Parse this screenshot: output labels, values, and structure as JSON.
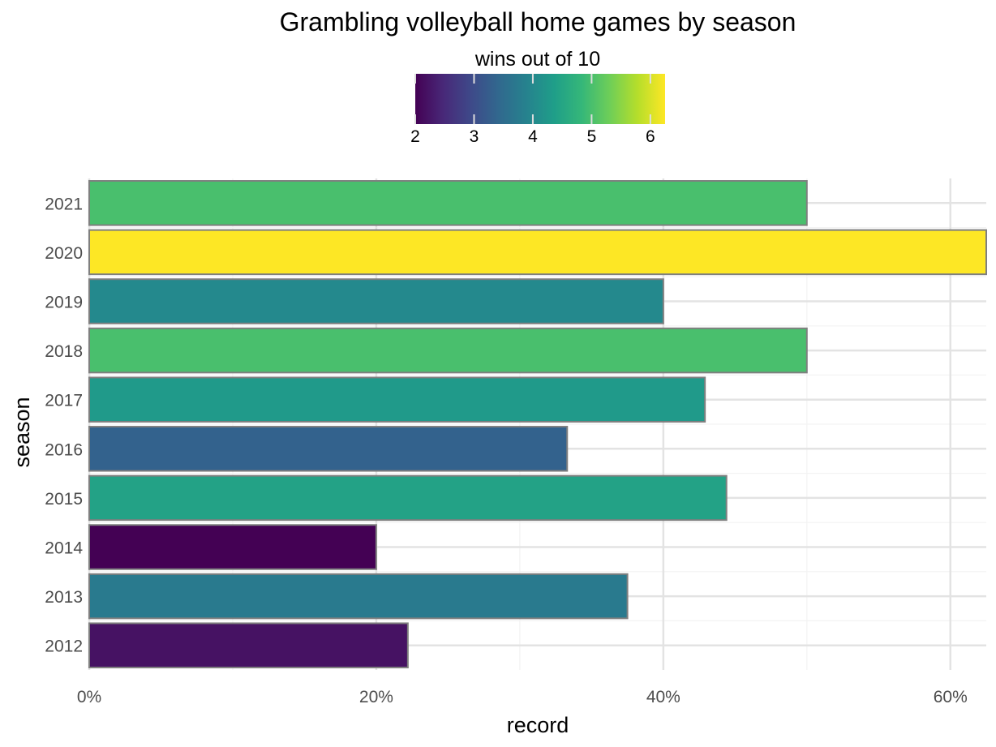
{
  "chart_data": {
    "type": "bar",
    "orientation": "horizontal",
    "title": "Grambling volleyball home games by season",
    "xlabel": "record",
    "ylabel": "season",
    "xlim": [
      0,
      62.5
    ],
    "x_ticks": [
      0,
      20,
      40,
      60
    ],
    "x_tick_labels": [
      "0%",
      "20%",
      "40%",
      "60%"
    ],
    "grid": true,
    "categories": [
      "2012",
      "2013",
      "2014",
      "2015",
      "2016",
      "2017",
      "2018",
      "2019",
      "2020",
      "2021"
    ],
    "values": [
      22.2,
      37.5,
      20.0,
      44.4,
      33.3,
      42.9,
      50.0,
      40.0,
      62.5,
      50.0
    ],
    "fill_values": [
      2.2,
      3.75,
      2.0,
      4.44,
      3.33,
      4.29,
      5.0,
      4.0,
      6.25,
      5.0
    ],
    "legend": {
      "title": "wins out of 10",
      "position": "top",
      "type": "colorbar",
      "range": [
        2.0,
        6.25
      ],
      "ticks": [
        2,
        3,
        4,
        5,
        6
      ],
      "tick_labels": [
        "2",
        "3",
        "4",
        "5",
        "6"
      ],
      "palette": "viridis"
    }
  },
  "colors": {
    "viridis_stops": [
      "#440154",
      "#482878",
      "#3e4989",
      "#31688e",
      "#26828e",
      "#1f9e89",
      "#35b779",
      "#6ece58",
      "#b5de2b",
      "#fde725"
    ],
    "bar_outline": "#7f7f7f"
  }
}
